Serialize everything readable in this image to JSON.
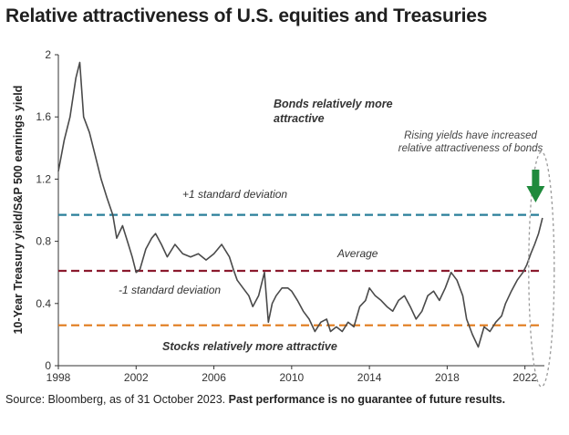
{
  "title": "Relative attractiveness of U.S. equities and Treasuries",
  "source_text": "Source: Bloomberg, as of 31 October 2023.",
  "source_bold": "Past performance is no guarantee of future results.",
  "colors": {
    "line": "#4a4a4a",
    "plus_sd": "#2a7f9a",
    "average": "#8b1a2e",
    "minus_sd": "#e07b1c",
    "arrow": "#1f8a3c",
    "ellipse": "#9a9a9a"
  },
  "chart_data": {
    "type": "line",
    "title": "Relative attractiveness of U.S. equities and Treasuries",
    "xlabel": "",
    "ylabel": "10-Year Treasury yield/S&P 500 earnings yield",
    "xlim": [
      1998,
      2023
    ],
    "ylim": [
      0,
      2
    ],
    "xticks": [
      "1998",
      "2002",
      "2006",
      "2010",
      "2014",
      "2018",
      "2022"
    ],
    "yticks": [
      "0",
      "0.4",
      "0.8",
      "1.2",
      "1.6",
      "2"
    ],
    "grid": false,
    "series": [
      {
        "name": "",
        "x": [
          1998.0,
          1998.3,
          1998.6,
          1998.9,
          1999.1,
          1999.3,
          1999.6,
          1999.9,
          2000.2,
          2000.5,
          2000.8,
          2001.0,
          2001.3,
          2001.6,
          2001.8,
          2002.0,
          2002.2,
          2002.5,
          2002.8,
          2003.0,
          2003.3,
          2003.6,
          2004.0,
          2004.4,
          2004.8,
          2005.2,
          2005.6,
          2006.0,
          2006.4,
          2006.8,
          2007.0,
          2007.2,
          2007.5,
          2007.8,
          2008.0,
          2008.3,
          2008.6,
          2008.8,
          2009.0,
          2009.2,
          2009.5,
          2009.8,
          2010.0,
          2010.3,
          2010.6,
          2010.9,
          2011.2,
          2011.5,
          2011.8,
          2012.0,
          2012.3,
          2012.6,
          2012.9,
          2013.2,
          2013.5,
          2013.8,
          2014.0,
          2014.3,
          2014.6,
          2014.9,
          2015.2,
          2015.5,
          2015.8,
          2016.1,
          2016.4,
          2016.7,
          2017.0,
          2017.3,
          2017.6,
          2017.9,
          2018.2,
          2018.5,
          2018.8,
          2019.0,
          2019.3,
          2019.6,
          2019.9,
          2020.2,
          2020.5,
          2020.8,
          2021.0,
          2021.3,
          2021.6,
          2021.9,
          2022.1,
          2022.3,
          2022.5,
          2022.7,
          2022.9
        ],
        "values": [
          1.25,
          1.45,
          1.6,
          1.85,
          1.95,
          1.6,
          1.5,
          1.35,
          1.2,
          1.08,
          0.97,
          0.82,
          0.9,
          0.78,
          0.7,
          0.6,
          0.62,
          0.75,
          0.82,
          0.85,
          0.78,
          0.7,
          0.78,
          0.72,
          0.7,
          0.72,
          0.68,
          0.72,
          0.78,
          0.7,
          0.62,
          0.55,
          0.5,
          0.45,
          0.38,
          0.45,
          0.6,
          0.28,
          0.4,
          0.45,
          0.5,
          0.5,
          0.48,
          0.42,
          0.35,
          0.3,
          0.22,
          0.28,
          0.3,
          0.22,
          0.25,
          0.22,
          0.28,
          0.25,
          0.38,
          0.42,
          0.5,
          0.45,
          0.42,
          0.38,
          0.35,
          0.42,
          0.45,
          0.38,
          0.3,
          0.35,
          0.45,
          0.48,
          0.42,
          0.5,
          0.6,
          0.55,
          0.45,
          0.3,
          0.2,
          0.12,
          0.25,
          0.22,
          0.28,
          0.32,
          0.4,
          0.48,
          0.55,
          0.6,
          0.65,
          0.72,
          0.78,
          0.85,
          0.95
        ]
      }
    ],
    "reference_lines": [
      {
        "label": "+1 standard deviation",
        "y": 0.97
      },
      {
        "label": "Average",
        "y": 0.61
      },
      {
        "label": "-1 standard deviation",
        "y": 0.26
      }
    ],
    "annotations": {
      "top": "Bonds relatively more attractive",
      "bottom": "Stocks relatively more attractive",
      "note": "Rising yields have increased relative attractiveness of bonds"
    }
  }
}
